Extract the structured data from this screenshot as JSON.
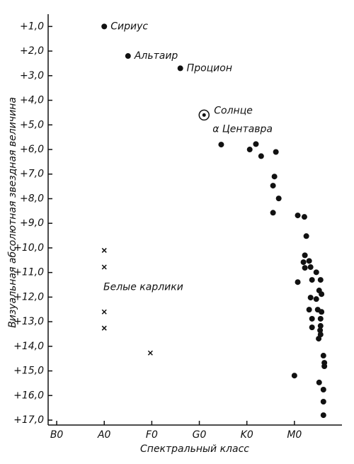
{
  "chart_data": {
    "type": "scatter",
    "xlabel": "Спектральный класс",
    "ylabel": "Визуальная абсолютная звездная величина",
    "xlim": [
      -0.18,
      6.0
    ],
    "xticks": [
      {
        "value": 0,
        "label": "B0"
      },
      {
        "value": 1,
        "label": "A0"
      },
      {
        "value": 2,
        "label": "F0"
      },
      {
        "value": 3,
        "label": "G0"
      },
      {
        "value": 4,
        "label": "K0"
      },
      {
        "value": 5,
        "label": "M0"
      }
    ],
    "ylim": [
      17.2,
      0.5
    ],
    "yticks": [
      {
        "value": 1,
        "label": "+1,0"
      },
      {
        "value": 2,
        "label": "+2,0"
      },
      {
        "value": 3,
        "label": "+3,0"
      },
      {
        "value": 4,
        "label": "+4,0"
      },
      {
        "value": 5,
        "label": "+5,0"
      },
      {
        "value": 6,
        "label": "+6,0"
      },
      {
        "value": 7,
        "label": "+7,0"
      },
      {
        "value": 8,
        "label": "+8,0"
      },
      {
        "value": 9,
        "label": "+9,0"
      },
      {
        "value": 10,
        "label": "+10,0"
      },
      {
        "value": 11,
        "label": "+11,0"
      },
      {
        "value": 12,
        "label": "+12,0"
      },
      {
        "value": 13,
        "label": "+13,0"
      },
      {
        "value": 14,
        "label": "+14,0"
      },
      {
        "value": 15,
        "label": "+15,0"
      },
      {
        "value": 16,
        "label": "+16,0"
      },
      {
        "value": 17,
        "label": "+17,0"
      }
    ],
    "color": "#111111",
    "stars": [
      {
        "label": "Сириус",
        "x": 1.0,
        "y": 1.0,
        "marker": "dot"
      },
      {
        "label": "Альтаир",
        "x": 1.5,
        "y": 2.2,
        "marker": "dot"
      },
      {
        "label": "Процион",
        "x": 2.6,
        "y": 2.7,
        "marker": "dot"
      },
      {
        "label": "Солнце",
        "second_label": "α Центавра",
        "x": 3.1,
        "y": 4.6,
        "marker": "circled"
      }
    ],
    "series": [
      {
        "marker": "dot",
        "x": [
          3.46,
          4.06,
          4.19,
          4.3,
          4.61,
          4.58,
          4.55,
          4.67,
          4.55,
          5.07,
          5.21,
          5.25,
          5.22,
          5.19,
          5.31,
          5.22,
          5.34,
          5.46,
          5.07,
          5.37,
          5.55,
          5.52,
          5.57,
          5.46,
          5.34,
          5.31,
          5.49,
          5.57,
          5.37,
          5.55,
          5.55,
          5.37,
          5.54,
          5.55,
          5.51,
          5.61,
          5.63,
          5.63,
          5.0,
          5.52,
          5.61,
          5.61,
          5.61
        ],
        "values": [
          5.8,
          6.0,
          5.78,
          6.27,
          6.1,
          7.1,
          7.47,
          7.99,
          8.57,
          8.68,
          8.74,
          9.52,
          10.3,
          10.58,
          10.53,
          10.81,
          10.78,
          10.99,
          11.39,
          11.3,
          11.3,
          11.73,
          11.88,
          12.08,
          12.02,
          12.51,
          12.51,
          12.6,
          12.88,
          12.88,
          13.17,
          13.23,
          13.35,
          13.52,
          13.69,
          14.38,
          14.67,
          14.81,
          15.19,
          15.47,
          15.76,
          16.25,
          16.8
        ]
      },
      {
        "marker": "cross",
        "label": "Белые карлики",
        "x": [
          1.0,
          1.0,
          1.0,
          1.0,
          1.97
        ],
        "values": [
          10.1,
          10.78,
          12.6,
          13.26,
          14.27
        ]
      }
    ]
  }
}
